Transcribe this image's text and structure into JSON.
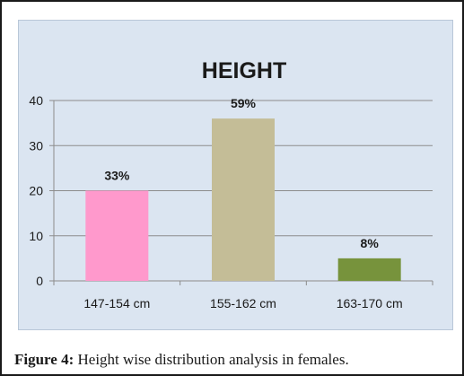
{
  "chart_data": {
    "type": "bar",
    "title": "HEIGHT",
    "categories": [
      "147-154 cm",
      "155-162 cm",
      "163-170 cm"
    ],
    "values": [
      20,
      36,
      5
    ],
    "data_labels": [
      "33%",
      "59%",
      "8%"
    ],
    "bar_colors": [
      "#ff99cc",
      "#c4bd97",
      "#77933c"
    ],
    "ylim": [
      0,
      40
    ],
    "yticks": [
      "0",
      "10",
      "20",
      "30",
      "40"
    ],
    "ytick_values": [
      0,
      10,
      20,
      30,
      40
    ],
    "grid": "horizontal",
    "legend": "none"
  },
  "caption": {
    "label": "Figure 4:",
    "text": "Height wise distribution analysis in females."
  },
  "colors": {
    "panel_background": "#dbe5f1",
    "gridline": "#8c8c8c",
    "text": "#1a1a1a"
  }
}
